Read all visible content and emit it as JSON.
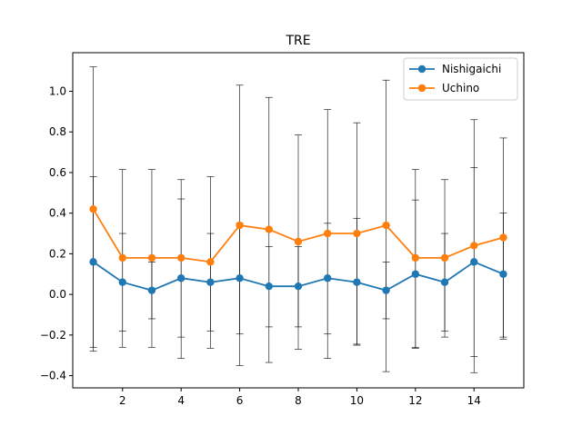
{
  "chart_data": {
    "type": "line",
    "title": "TRE",
    "xlabel": "",
    "ylabel": "",
    "xlim": [
      0.3,
      15.7
    ],
    "ylim": [
      -0.46,
      1.19
    ],
    "xticks": [
      2,
      4,
      6,
      8,
      10,
      12,
      14
    ],
    "yticks": [
      -0.4,
      -0.2,
      0.0,
      0.2,
      0.4,
      0.6,
      0.8,
      1.0
    ],
    "ytick_labels": [
      "−0.4",
      "−0.2",
      "0.0",
      "0.2",
      "0.4",
      "0.6",
      "0.8",
      "1.0"
    ],
    "grid": false,
    "legend_position": "top-right",
    "x": [
      1,
      2,
      3,
      4,
      5,
      6,
      7,
      8,
      9,
      10,
      11,
      12,
      13,
      14,
      15
    ],
    "series": [
      {
        "name": "Nishigaichi",
        "color": "#1f77b4",
        "values": [
          0.16,
          0.06,
          0.02,
          0.08,
          0.06,
          0.08,
          0.04,
          0.04,
          0.08,
          0.06,
          0.02,
          0.1,
          0.06,
          0.16,
          0.1
        ],
        "err_low": [
          -0.28,
          -0.18,
          -0.12,
          -0.21,
          -0.18,
          -0.195,
          -0.16,
          -0.16,
          -0.195,
          -0.25,
          -0.12,
          -0.26,
          -0.18,
          -0.305,
          -0.21
        ],
        "err_high": [
          0.58,
          0.3,
          0.16,
          0.47,
          0.3,
          0.35,
          0.235,
          0.235,
          0.35,
          0.375,
          0.16,
          0.465,
          0.3,
          0.625,
          0.4
        ]
      },
      {
        "name": "Uchino",
        "color": "#ff7f0e",
        "values": [
          0.42,
          0.18,
          0.18,
          0.18,
          0.16,
          0.34,
          0.32,
          0.26,
          0.3,
          0.3,
          0.34,
          0.18,
          0.18,
          0.24,
          0.28
        ],
        "err_low": [
          -0.26,
          -0.26,
          -0.26,
          -0.315,
          -0.265,
          -0.35,
          -0.335,
          -0.27,
          -0.315,
          -0.245,
          -0.38,
          -0.265,
          -0.21,
          -0.385,
          -0.22
        ],
        "err_high": [
          1.12,
          0.615,
          0.615,
          0.565,
          0.58,
          1.03,
          0.97,
          0.785,
          0.91,
          0.845,
          1.055,
          0.615,
          0.565,
          0.86,
          0.77
        ]
      }
    ]
  }
}
